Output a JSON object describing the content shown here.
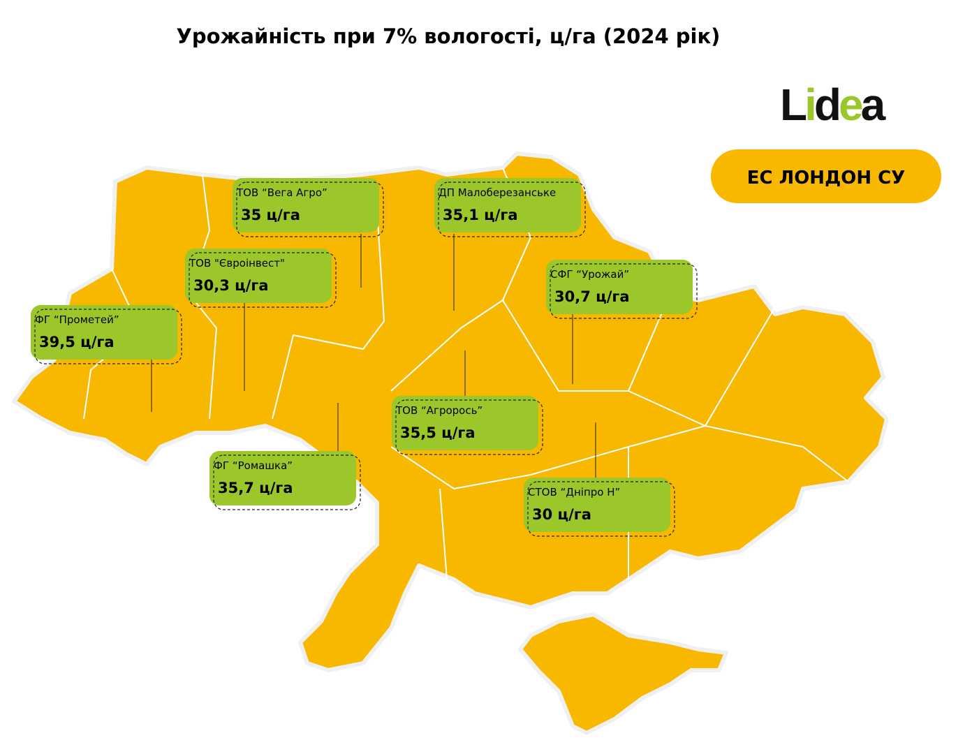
{
  "title": "Урожайність при 7% вологості, ц/га (2024 рік)",
  "logo": "Lidea",
  "hybrid": "ЕС ЛОНДОН СУ",
  "farms": [
    {
      "name": "ТОВ “Вега Агро”",
      "yield": "35 ц/га"
    },
    {
      "name": "ДП Малоберезанське",
      "yield": "35,1 ц/га"
    },
    {
      "name": "ТОВ \"Євроінвест\"",
      "yield": "30,3 ц/га"
    },
    {
      "name": "ФГ “Прометей”",
      "yield": "39,5 ц/га"
    },
    {
      "name": "СФГ “Урожай”",
      "yield": "30,7 ц/га"
    },
    {
      "name": "ТОВ “Агророcь”",
      "yield": "35,5 ц/га"
    },
    {
      "name": "ФГ “Ромашка”",
      "yield": "35,7 ц/га"
    },
    {
      "name": "СТОВ “Дніпро Н”",
      "yield": "30 ц/га"
    }
  ]
}
